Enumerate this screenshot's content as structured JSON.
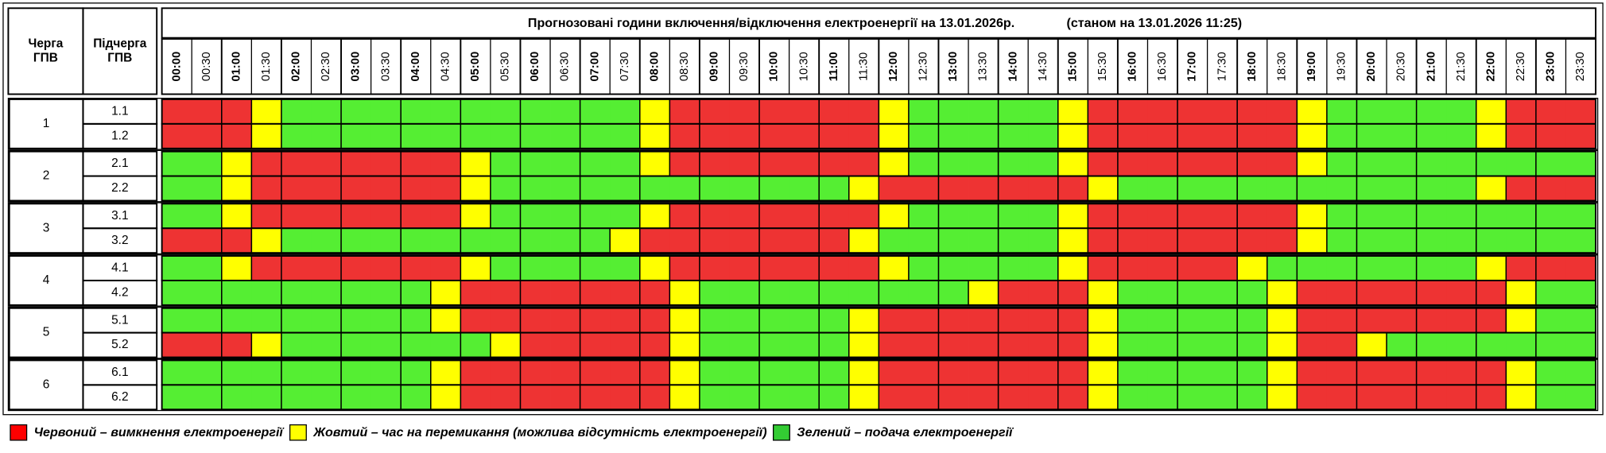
{
  "header": {
    "queue": [
      "Черга",
      "ГПВ"
    ],
    "subqueue": [
      "Підчерга",
      "ГПВ"
    ],
    "title": "Прогнозовані години включення/відключення електроенергії на 13.01.2026р.",
    "status": "(станом на 13.01.2026 11:25)"
  },
  "times": [
    "00:00",
    "00:30",
    "01:00",
    "01:30",
    "02:00",
    "02:30",
    "03:00",
    "03:30",
    "04:00",
    "04:30",
    "05:00",
    "05:30",
    "06:00",
    "06:30",
    "07:00",
    "07:30",
    "08:00",
    "08:30",
    "09:00",
    "09:30",
    "10:00",
    "10:30",
    "11:00",
    "11:30",
    "12:00",
    "12:30",
    "13:00",
    "13:30",
    "14:00",
    "14:30",
    "15:00",
    "15:30",
    "16:00",
    "16:30",
    "17:00",
    "17:30",
    "18:00",
    "18:30",
    "19:00",
    "19:30",
    "20:00",
    "20:30",
    "21:00",
    "21:30",
    "22:00",
    "22:30",
    "23:00",
    "23:30"
  ],
  "groups": [
    {
      "label": "1",
      "subgroups": [
        {
          "label": "1.1",
          "cells": [
            "#e33",
            "#e33",
            "#e33",
            "#ff0",
            "#5e3",
            "#5e3",
            "#5e3",
            "#5e3",
            "#5e3",
            "#5e3",
            "#5e3",
            "#5e3",
            "#5e3",
            "#5e3",
            "#5e3",
            "#5e3",
            "#ff0",
            "#e33",
            "#e33",
            "#e33",
            "#e33",
            "#e33",
            "#e33",
            "#e33",
            "#ff0",
            "#5e3",
            "#5e3",
            "#5e3",
            "#5e3",
            "#5e3",
            "#ff0",
            "#e33",
            "#e33",
            "#e33",
            "#e33",
            "#e33",
            "#e33",
            "#e33",
            "#ff0",
            "#5e3",
            "#5e3",
            "#5e3",
            "#5e3",
            "#5e3",
            "#ff0",
            "#e33",
            "#e33",
            "#e33"
          ]
        },
        {
          "label": "1.2",
          "cells": [
            "#e33",
            "#e33",
            "#e33",
            "#ff0",
            "#5e3",
            "#5e3",
            "#5e3",
            "#5e3",
            "#5e3",
            "#5e3",
            "#5e3",
            "#5e3",
            "#5e3",
            "#5e3",
            "#5e3",
            "#5e3",
            "#ff0",
            "#e33",
            "#e33",
            "#e33",
            "#e33",
            "#e33",
            "#e33",
            "#e33",
            "#ff0",
            "#5e3",
            "#5e3",
            "#5e3",
            "#5e3",
            "#5e3",
            "#ff0",
            "#e33",
            "#e33",
            "#e33",
            "#e33",
            "#e33",
            "#e33",
            "#e33",
            "#ff0",
            "#5e3",
            "#5e3",
            "#5e3",
            "#5e3",
            "#5e3",
            "#ff0",
            "#e33",
            "#e33",
            "#e33"
          ]
        }
      ]
    },
    {
      "label": "2",
      "subgroups": [
        {
          "label": "2.1",
          "cells": [
            "#5e3",
            "#5e3",
            "#ff0",
            "#e33",
            "#e33",
            "#e33",
            "#e33",
            "#e33",
            "#e33",
            "#e33",
            "#ff0",
            "#5e3",
            "#5e3",
            "#5e3",
            "#5e3",
            "#5e3",
            "#ff0",
            "#e33",
            "#e33",
            "#e33",
            "#e33",
            "#e33",
            "#e33",
            "#e33",
            "#ff0",
            "#5e3",
            "#5e3",
            "#5e3",
            "#5e3",
            "#5e3",
            "#ff0",
            "#e33",
            "#e33",
            "#e33",
            "#e33",
            "#e33",
            "#e33",
            "#e33",
            "#ff0",
            "#5e3",
            "#5e3",
            "#5e3",
            "#5e3",
            "#5e3",
            "#5e3",
            "#5e3",
            "#5e3",
            "#5e3"
          ]
        },
        {
          "label": "2.2",
          "cells": [
            "#5e3",
            "#5e3",
            "#ff0",
            "#e33",
            "#e33",
            "#e33",
            "#e33",
            "#e33",
            "#e33",
            "#e33",
            "#ff0",
            "#5e3",
            "#5e3",
            "#5e3",
            "#5e3",
            "#5e3",
            "#5e3",
            "#5e3",
            "#5e3",
            "#5e3",
            "#5e3",
            "#5e3",
            "#5e3",
            "#ff0",
            "#e33",
            "#e33",
            "#e33",
            "#e33",
            "#e33",
            "#e33",
            "#e33",
            "#ff0",
            "#5e3",
            "#5e3",
            "#5e3",
            "#5e3",
            "#5e3",
            "#5e3",
            "#5e3",
            "#5e3",
            "#5e3",
            "#5e3",
            "#5e3",
            "#5e3",
            "#ff0",
            "#e33",
            "#e33",
            "#e33"
          ]
        }
      ]
    },
    {
      "label": "3",
      "subgroups": [
        {
          "label": "3.1",
          "cells": [
            "#5e3",
            "#5e3",
            "#ff0",
            "#e33",
            "#e33",
            "#e33",
            "#e33",
            "#e33",
            "#e33",
            "#e33",
            "#ff0",
            "#5e3",
            "#5e3",
            "#5e3",
            "#5e3",
            "#5e3",
            "#ff0",
            "#e33",
            "#e33",
            "#e33",
            "#e33",
            "#e33",
            "#e33",
            "#e33",
            "#ff0",
            "#5e3",
            "#5e3",
            "#5e3",
            "#5e3",
            "#5e3",
            "#ff0",
            "#e33",
            "#e33",
            "#e33",
            "#e33",
            "#e33",
            "#e33",
            "#e33",
            "#ff0",
            "#5e3",
            "#5e3",
            "#5e3",
            "#5e3",
            "#5e3",
            "#5e3",
            "#5e3",
            "#5e3",
            "#5e3"
          ]
        },
        {
          "label": "3.2",
          "cells": [
            "#e33",
            "#e33",
            "#e33",
            "#ff0",
            "#5e3",
            "#5e3",
            "#5e3",
            "#5e3",
            "#5e3",
            "#5e3",
            "#5e3",
            "#5e3",
            "#5e3",
            "#5e3",
            "#5e3",
            "#ff0",
            "#e33",
            "#e33",
            "#e33",
            "#e33",
            "#e33",
            "#e33",
            "#e33",
            "#ff0",
            "#5e3",
            "#5e3",
            "#5e3",
            "#5e3",
            "#5e3",
            "#5e3",
            "#ff0",
            "#e33",
            "#e33",
            "#e33",
            "#e33",
            "#e33",
            "#e33",
            "#e33",
            "#ff0",
            "#5e3",
            "#5e3",
            "#5e3",
            "#5e3",
            "#5e3",
            "#5e3",
            "#5e3",
            "#5e3",
            "#5e3"
          ]
        }
      ]
    },
    {
      "label": "4",
      "subgroups": [
        {
          "label": "4.1",
          "cells": [
            "#5e3",
            "#5e3",
            "#ff0",
            "#e33",
            "#e33",
            "#e33",
            "#e33",
            "#e33",
            "#e33",
            "#e33",
            "#ff0",
            "#5e3",
            "#5e3",
            "#5e3",
            "#5e3",
            "#5e3",
            "#ff0",
            "#e33",
            "#e33",
            "#e33",
            "#e33",
            "#e33",
            "#e33",
            "#e33",
            "#ff0",
            "#5e3",
            "#5e3",
            "#5e3",
            "#5e3",
            "#5e3",
            "#ff0",
            "#e33",
            "#e33",
            "#e33",
            "#e33",
            "#e33",
            "#ff0",
            "#5e3",
            "#5e3",
            "#5e3",
            "#5e3",
            "#5e3",
            "#5e3",
            "#5e3",
            "#ff0",
            "#e33",
            "#e33",
            "#e33"
          ]
        },
        {
          "label": "4.2",
          "cells": [
            "#5e3",
            "#5e3",
            "#5e3",
            "#5e3",
            "#5e3",
            "#5e3",
            "#5e3",
            "#5e3",
            "#5e3",
            "#ff0",
            "#e33",
            "#e33",
            "#e33",
            "#e33",
            "#e33",
            "#e33",
            "#e33",
            "#ff0",
            "#5e3",
            "#5e3",
            "#5e3",
            "#5e3",
            "#5e3",
            "#5e3",
            "#5e3",
            "#5e3",
            "#5e3",
            "#ff0",
            "#e33",
            "#e33",
            "#e33",
            "#ff0",
            "#5e3",
            "#5e3",
            "#5e3",
            "#5e3",
            "#5e3",
            "#ff0",
            "#e33",
            "#e33",
            "#e33",
            "#e33",
            "#e33",
            "#e33",
            "#e33",
            "#ff0",
            "#5e3",
            "#5e3"
          ]
        }
      ]
    },
    {
      "label": "5",
      "subgroups": [
        {
          "label": "5.1",
          "cells": [
            "#5e3",
            "#5e3",
            "#5e3",
            "#5e3",
            "#5e3",
            "#5e3",
            "#5e3",
            "#5e3",
            "#5e3",
            "#ff0",
            "#e33",
            "#e33",
            "#e33",
            "#e33",
            "#e33",
            "#e33",
            "#e33",
            "#ff0",
            "#5e3",
            "#5e3",
            "#5e3",
            "#5e3",
            "#5e3",
            "#ff0",
            "#e33",
            "#e33",
            "#e33",
            "#e33",
            "#e33",
            "#e33",
            "#e33",
            "#ff0",
            "#5e3",
            "#5e3",
            "#5e3",
            "#5e3",
            "#5e3",
            "#ff0",
            "#e33",
            "#e33",
            "#e33",
            "#e33",
            "#e33",
            "#e33",
            "#e33",
            "#ff0",
            "#5e3",
            "#5e3"
          ]
        },
        {
          "label": "5.2",
          "cells": [
            "#e33",
            "#e33",
            "#e33",
            "#ff0",
            "#5e3",
            "#5e3",
            "#5e3",
            "#5e3",
            "#5e3",
            "#5e3",
            "#5e3",
            "#ff0",
            "#e33",
            "#e33",
            "#e33",
            "#e33",
            "#e33",
            "#ff0",
            "#5e3",
            "#5e3",
            "#5e3",
            "#5e3",
            "#5e3",
            "#ff0",
            "#e33",
            "#e33",
            "#e33",
            "#e33",
            "#e33",
            "#e33",
            "#e33",
            "#ff0",
            "#5e3",
            "#5e3",
            "#5e3",
            "#5e3",
            "#5e3",
            "#ff0",
            "#e33",
            "#e33",
            "#ff0",
            "#5e3",
            "#5e3",
            "#5e3",
            "#5e3",
            "#5e3",
            "#5e3",
            "#5e3"
          ]
        }
      ]
    },
    {
      "label": "6",
      "subgroups": [
        {
          "label": "6.1",
          "cells": [
            "#5e3",
            "#5e3",
            "#5e3",
            "#5e3",
            "#5e3",
            "#5e3",
            "#5e3",
            "#5e3",
            "#5e3",
            "#ff0",
            "#e33",
            "#e33",
            "#e33",
            "#e33",
            "#e33",
            "#e33",
            "#e33",
            "#ff0",
            "#5e3",
            "#5e3",
            "#5e3",
            "#5e3",
            "#5e3",
            "#ff0",
            "#e33",
            "#e33",
            "#e33",
            "#e33",
            "#e33",
            "#e33",
            "#e33",
            "#ff0",
            "#5e3",
            "#5e3",
            "#5e3",
            "#5e3",
            "#5e3",
            "#ff0",
            "#e33",
            "#e33",
            "#e33",
            "#e33",
            "#e33",
            "#e33",
            "#e33",
            "#ff0",
            "#5e3",
            "#5e3"
          ]
        },
        {
          "label": "6.2",
          "cells": [
            "#5e3",
            "#5e3",
            "#5e3",
            "#5e3",
            "#5e3",
            "#5e3",
            "#5e3",
            "#5e3",
            "#5e3",
            "#ff0",
            "#e33",
            "#e33",
            "#e33",
            "#e33",
            "#e33",
            "#e33",
            "#e33",
            "#ff0",
            "#5e3",
            "#5e3",
            "#5e3",
            "#5e3",
            "#5e3",
            "#ff0",
            "#e33",
            "#e33",
            "#e33",
            "#e33",
            "#e33",
            "#e33",
            "#e33",
            "#ff0",
            "#5e3",
            "#5e3",
            "#5e3",
            "#5e3",
            "#5e3",
            "#ff0",
            "#e33",
            "#e33",
            "#e33",
            "#e33",
            "#e33",
            "#e33",
            "#e33",
            "#ff0",
            "#5e3",
            "#5e3"
          ]
        }
      ]
    }
  ],
  "legend": [
    {
      "color": "#f00",
      "label": "Червоний – вимкнення електроенергії"
    },
    {
      "color": "#ff0",
      "label": "Жовтий – час на перемикання (можлива відсутність електроенергії)"
    },
    {
      "color": "#3c3",
      "label": "Зелений – подача електроенергії"
    }
  ]
}
